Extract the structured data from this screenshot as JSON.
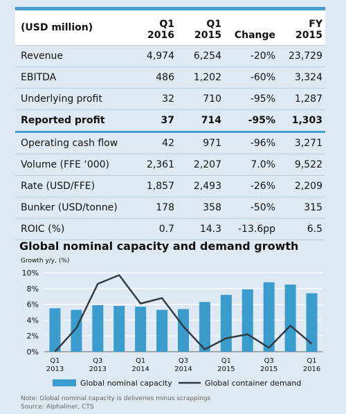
{
  "table": {
    "headers": [
      {
        "l1": "",
        "l2": "(USD million)"
      },
      {
        "l1": "Q1",
        "l2": "2016"
      },
      {
        "l1": "Q1",
        "l2": "2015"
      },
      {
        "l1": "",
        "l2": "Change"
      },
      {
        "l1": "FY",
        "l2": "2015"
      }
    ],
    "rows": [
      {
        "label": "Revenue",
        "q1_2016": "4,974",
        "q1_2015": "6,254",
        "change": "-20%",
        "fy_2015": "23,729"
      },
      {
        "label": "EBITDA",
        "q1_2016": "486",
        "q1_2015": "1,202",
        "change": "-60%",
        "fy_2015": "3,324"
      },
      {
        "label": "Underlying profit",
        "q1_2016": "32",
        "q1_2015": "710",
        "change": "-95%",
        "fy_2015": "1,287"
      },
      {
        "label": "Reported profit",
        "q1_2016": "37",
        "q1_2015": "714",
        "change": "-95%",
        "fy_2015": "1,303"
      },
      {
        "label": "Operating cash flow",
        "q1_2016": "42",
        "q1_2015": "971",
        "change": "-96%",
        "fy_2015": "3,271"
      },
      {
        "label": "Volume (FFE ‘000)",
        "q1_2016": "2,361",
        "q1_2015": "2,207",
        "change": "7.0%",
        "fy_2015": "9,522"
      },
      {
        "label": "Rate (USD/FFE)",
        "q1_2016": "1,857",
        "q1_2015": "2,493",
        "change": "-26%",
        "fy_2015": "2,209"
      },
      {
        "label": "Bunker (USD/tonne)",
        "q1_2016": "178",
        "q1_2015": "358",
        "change": "-50%",
        "fy_2015": "315"
      },
      {
        "label": "ROIC (%)",
        "q1_2016": "0.7",
        "q1_2015": "14.3",
        "change": "-13.6pp",
        "fy_2015": "6.5"
      }
    ]
  },
  "chart_data": {
    "type": "bar",
    "title": "Global nominal capacity and demand growth",
    "ylabel": "Growth y/y, (%)",
    "ylim": [
      0,
      10
    ],
    "yticks": [
      "0%",
      "2%",
      "4%",
      "6%",
      "8%",
      "10%"
    ],
    "categories": [
      "Q1 2013",
      "Q2 2013",
      "Q3 2013",
      "Q4 2013",
      "Q1 2014",
      "Q2 2014",
      "Q3 2014",
      "Q4 2014",
      "Q1 2015",
      "Q2 2015",
      "Q3 2015",
      "Q4 2015",
      "Q1 2016"
    ],
    "xtick_labels": [
      {
        "index": 0,
        "l1": "Q1",
        "l2": "2013"
      },
      {
        "index": 2,
        "l1": "Q3",
        "l2": "2013"
      },
      {
        "index": 4,
        "l1": "Q1",
        "l2": "2014"
      },
      {
        "index": 6,
        "l1": "Q3",
        "l2": "2014"
      },
      {
        "index": 8,
        "l1": "Q1",
        "l2": "2015"
      },
      {
        "index": 10,
        "l1": "Q3",
        "l2": "2015"
      },
      {
        "index": 12,
        "l1": "Q1",
        "l2": "2016"
      }
    ],
    "series": [
      {
        "name": "Global nominal capacity",
        "type": "bar",
        "color": "#3a9ccc",
        "values": [
          5.5,
          5.3,
          5.9,
          5.8,
          5.7,
          5.3,
          5.4,
          6.3,
          7.2,
          7.9,
          8.8,
          8.5,
          7.4
        ]
      },
      {
        "name": "Global container demand",
        "type": "line",
        "color": "#333b44",
        "values": [
          0.0,
          3.0,
          8.6,
          9.7,
          6.1,
          6.8,
          3.2,
          0.3,
          1.7,
          2.2,
          0.5,
          3.3,
          1.0
        ]
      }
    ],
    "grid": true,
    "legend_position": "bottom"
  },
  "notes": {
    "note": "Note: Global nominal capacity is deliveries minus scrappings",
    "source": "Source: Alphaliner, CTS"
  }
}
